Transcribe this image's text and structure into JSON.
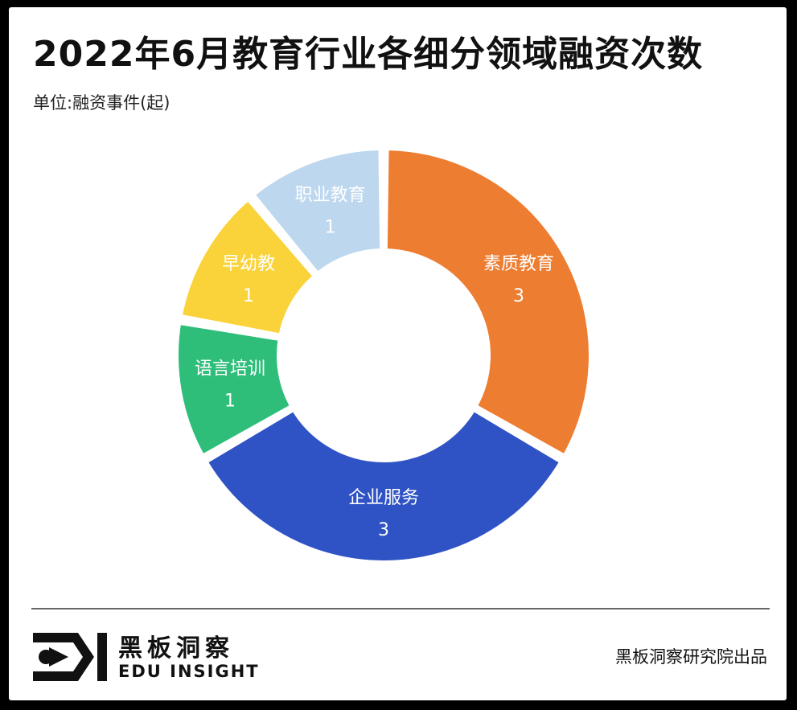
{
  "header": {
    "title": "2022年6月教育行业各细分领域融资次数",
    "unit": "单位:融资事件(起)"
  },
  "chart_data": {
    "type": "pie",
    "donut": true,
    "title": "2022年6月教育行业各细分领域融资次数",
    "subtitle": "单位:融资事件(起)",
    "legend": "none",
    "slices": [
      {
        "label": "素质教育",
        "value": 3,
        "color": "#ED7D31"
      },
      {
        "label": "企业服务",
        "value": 3,
        "color": "#2F53C4"
      },
      {
        "label": "语言培训",
        "value": 1,
        "color": "#2FBE7A"
      },
      {
        "label": "早幼教",
        "value": 1,
        "color": "#FAD33A"
      },
      {
        "label": "职业教育",
        "value": 1,
        "color": "#BDD7EE"
      }
    ]
  },
  "footer": {
    "logo_cn": "黑板洞察",
    "logo_en": "EDU INSIGHT",
    "credit": "黑板洞察研究院出品"
  }
}
